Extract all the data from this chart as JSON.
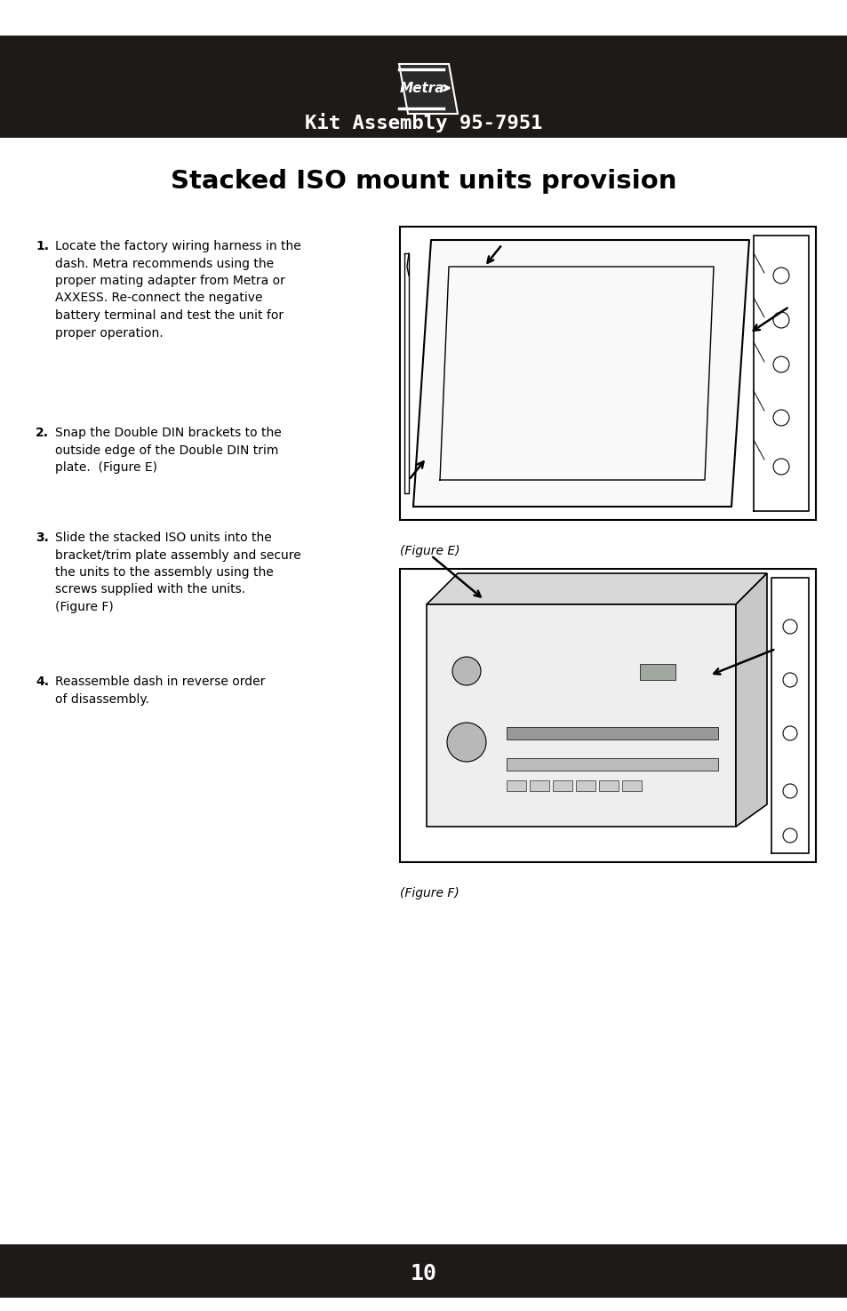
{
  "page_bg": "#ffffff",
  "header_bg": "#1e1a18",
  "footer_bg": "#1e1a18",
  "header_text": "Kit Assembly 95-7951",
  "header_text_color": "#ffffff",
  "footer_text": "10",
  "footer_text_color": "#ffffff",
  "title": "Stacked ISO mount units provision",
  "title_color": "#000000",
  "title_fontsize": 21,
  "body_text_color": "#000000",
  "body_fontsize": 10.0,
  "fig_e_label": "(Figure E)",
  "fig_f_label": "(Figure F)"
}
